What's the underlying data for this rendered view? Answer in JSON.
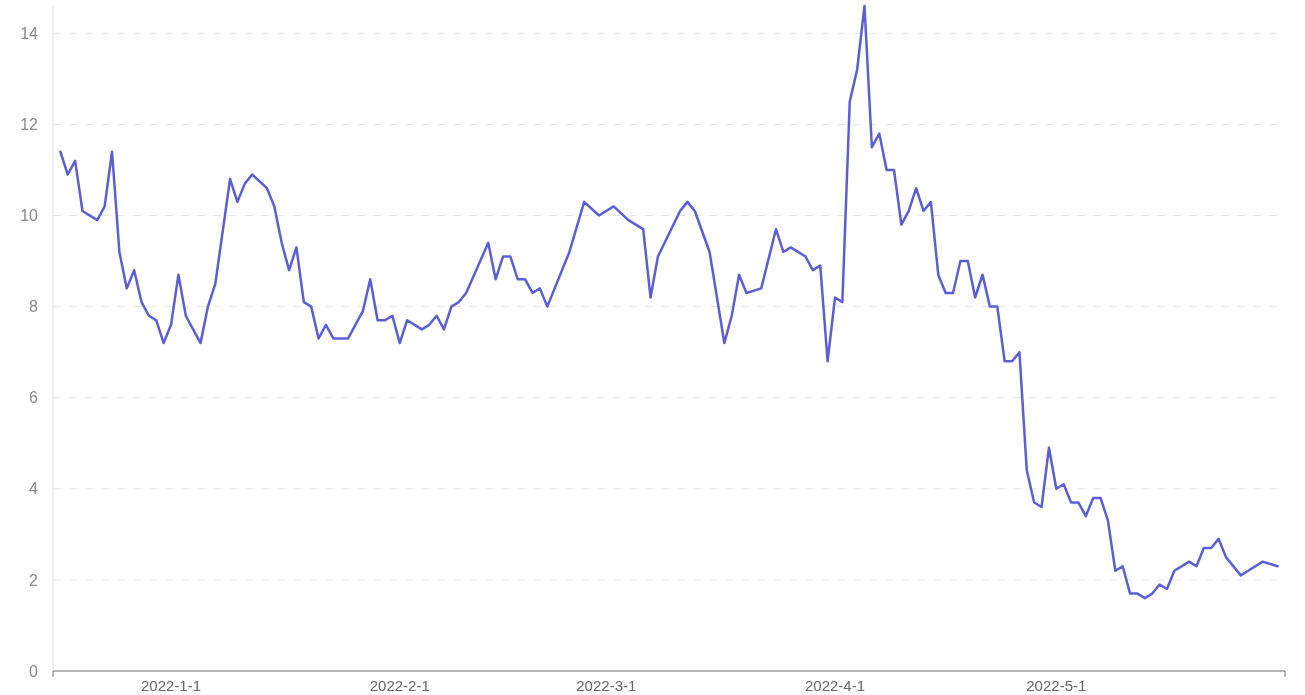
{
  "chart_data": {
    "type": "line",
    "x": [
      "2021-12-17",
      "2021-12-18",
      "2021-12-19",
      "2021-12-20",
      "2021-12-22",
      "2021-12-23",
      "2021-12-24",
      "2021-12-25",
      "2021-12-26",
      "2021-12-27",
      "2021-12-28",
      "2021-12-29",
      "2021-12-30",
      "2021-12-31",
      "2022-01-01",
      "2022-01-02",
      "2022-01-03",
      "2022-01-05",
      "2022-01-06",
      "2022-01-07",
      "2022-01-09",
      "2022-01-10",
      "2022-01-11",
      "2022-01-12",
      "2022-01-14",
      "2022-01-15",
      "2022-01-16",
      "2022-01-17",
      "2022-01-18",
      "2022-01-19",
      "2022-01-20",
      "2022-01-21",
      "2022-01-22",
      "2022-01-23",
      "2022-01-25",
      "2022-01-27",
      "2022-01-28",
      "2022-01-29",
      "2022-01-30",
      "2022-01-31",
      "2022-02-01",
      "2022-02-02",
      "2022-02-04",
      "2022-02-05",
      "2022-02-06",
      "2022-02-07",
      "2022-02-08",
      "2022-02-09",
      "2022-02-10",
      "2022-02-13",
      "2022-02-14",
      "2022-02-15",
      "2022-02-16",
      "2022-02-17",
      "2022-02-18",
      "2022-02-19",
      "2022-02-20",
      "2022-02-21",
      "2022-02-24",
      "2022-02-26",
      "2022-02-28",
      "2022-03-02",
      "2022-03-04",
      "2022-03-06",
      "2022-03-07",
      "2022-03-08",
      "2022-03-11",
      "2022-03-12",
      "2022-03-13",
      "2022-03-15",
      "2022-03-17",
      "2022-03-18",
      "2022-03-19",
      "2022-03-20",
      "2022-03-22",
      "2022-03-24",
      "2022-03-25",
      "2022-03-26",
      "2022-03-28",
      "2022-03-29",
      "2022-03-30",
      "2022-03-31",
      "2022-04-01",
      "2022-04-02",
      "2022-04-03",
      "2022-04-04",
      "2022-04-05",
      "2022-04-06",
      "2022-04-07",
      "2022-04-08",
      "2022-04-09",
      "2022-04-10",
      "2022-04-11",
      "2022-04-12",
      "2022-04-13",
      "2022-04-14",
      "2022-04-15",
      "2022-04-16",
      "2022-04-17",
      "2022-04-18",
      "2022-04-19",
      "2022-04-20",
      "2022-04-21",
      "2022-04-22",
      "2022-04-23",
      "2022-04-24",
      "2022-04-25",
      "2022-04-26",
      "2022-04-27",
      "2022-04-28",
      "2022-04-29",
      "2022-04-30",
      "2022-05-01",
      "2022-05-02",
      "2022-05-03",
      "2022-05-04",
      "2022-05-05",
      "2022-05-06",
      "2022-05-07",
      "2022-05-08",
      "2022-05-09",
      "2022-05-10",
      "2022-05-11",
      "2022-05-12",
      "2022-05-13",
      "2022-05-14",
      "2022-05-15",
      "2022-05-16",
      "2022-05-17",
      "2022-05-18",
      "2022-05-19",
      "2022-05-20",
      "2022-05-21",
      "2022-05-22",
      "2022-05-23",
      "2022-05-24",
      "2022-05-26",
      "2022-05-27",
      "2022-05-29",
      "2022-05-31"
    ],
    "series": [
      {
        "color": "#5b5fd6",
        "values": [
          11.4,
          10.9,
          11.2,
          10.1,
          9.9,
          10.2,
          11.4,
          9.2,
          8.4,
          8.8,
          8.1,
          7.8,
          7.7,
          7.2,
          7.6,
          8.7,
          7.8,
          7.2,
          8.0,
          8.5,
          10.8,
          10.3,
          10.7,
          10.9,
          10.6,
          10.2,
          9.4,
          8.8,
          9.3,
          8.1,
          8.0,
          7.3,
          7.6,
          7.3,
          7.3,
          7.9,
          8.6,
          7.7,
          7.7,
          7.8,
          7.2,
          7.7,
          7.5,
          7.6,
          7.8,
          7.5,
          8.0,
          8.1,
          8.3,
          9.4,
          8.6,
          9.1,
          9.1,
          8.6,
          8.6,
          8.3,
          8.4,
          8.0,
          9.2,
          10.3,
          10.0,
          10.2,
          9.9,
          9.7,
          8.2,
          9.1,
          10.1,
          10.3,
          10.1,
          9.2,
          7.2,
          7.8,
          8.7,
          8.3,
          8.4,
          9.7,
          9.2,
          9.3,
          9.1,
          8.8,
          8.9,
          6.8,
          8.2,
          8.1,
          12.5,
          13.2,
          14.6,
          11.5,
          11.8,
          11.0,
          11.0,
          9.8,
          10.1,
          10.6,
          10.1,
          10.3,
          8.7,
          8.3,
          8.3,
          9.0,
          9.0,
          8.2,
          8.7,
          8.0,
          8.0,
          6.8,
          6.8,
          7.0,
          4.4,
          3.7,
          3.6,
          4.9,
          4.0,
          4.1,
          3.7,
          3.7,
          3.4,
          3.8,
          3.8,
          3.3,
          2.2,
          2.3,
          1.7,
          1.7,
          1.6,
          1.7,
          1.9,
          1.8,
          2.2,
          2.3,
          2.4,
          2.3,
          2.7,
          2.7,
          2.9,
          2.5,
          2.1,
          2.2,
          2.4,
          2.3
        ]
      }
    ],
    "xlim": [
      "2021-12-16",
      "2022-06-01"
    ],
    "xticks": [
      {
        "value": "2022-01-01",
        "label": "2022-1-1"
      },
      {
        "value": "2022-02-01",
        "label": "2022-2-1"
      },
      {
        "value": "2022-03-01",
        "label": "2022-3-1"
      },
      {
        "value": "2022-04-01",
        "label": "2022-4-1"
      },
      {
        "value": "2022-05-01",
        "label": "2022-5-1"
      }
    ],
    "ylim": [
      0,
      14.6
    ],
    "yticks": [
      0,
      2,
      4,
      6,
      8,
      10,
      12,
      14
    ],
    "grid": "y",
    "marker": "none",
    "line_style": "solid"
  }
}
